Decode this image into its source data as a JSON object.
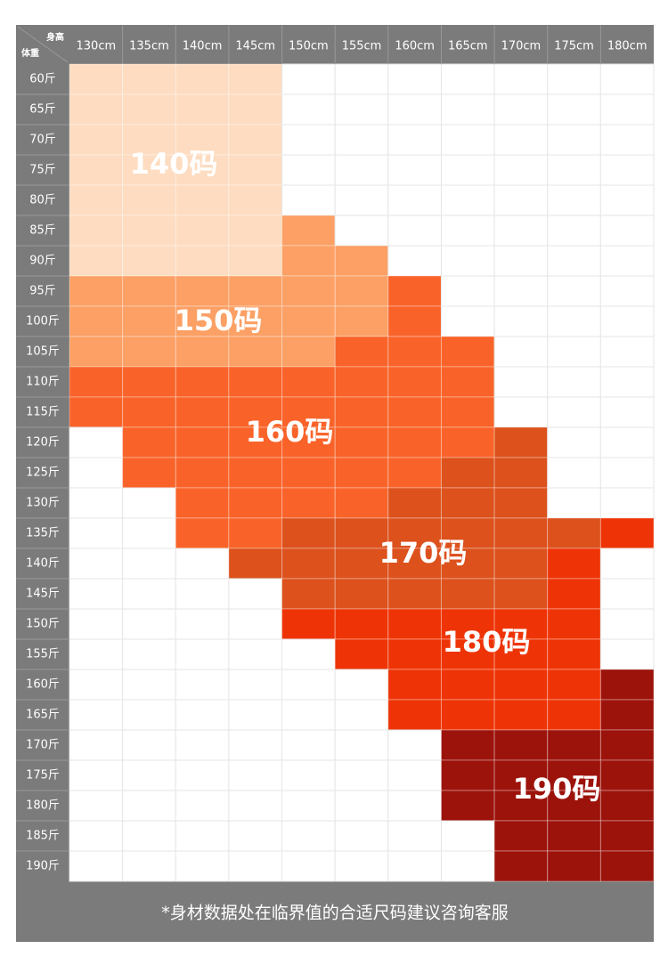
{
  "table": {
    "corner": {
      "top": "身高",
      "bottom": "体重"
    },
    "columns": [
      "130cm",
      "135cm",
      "140cm",
      "145cm",
      "150cm",
      "155cm",
      "160cm",
      "165cm",
      "170cm",
      "175cm",
      "180cm"
    ],
    "rows": [
      "60斤",
      "65斤",
      "70斤",
      "75斤",
      "80斤",
      "85斤",
      "90斤",
      "95斤",
      "100斤",
      "105斤",
      "110斤",
      "115斤",
      "120斤",
      "125斤",
      "130斤",
      "135斤",
      "140斤",
      "145斤",
      "150斤",
      "155斤",
      "160斤",
      "165斤",
      "170斤",
      "175斤",
      "180斤",
      "185斤",
      "190斤"
    ],
    "sizes": [
      "140码",
      "150码",
      "160码",
      "170码",
      "180码",
      "190码"
    ]
  },
  "footer": "*身材数据处在临界值的合适尺码建议咨询客服"
}
